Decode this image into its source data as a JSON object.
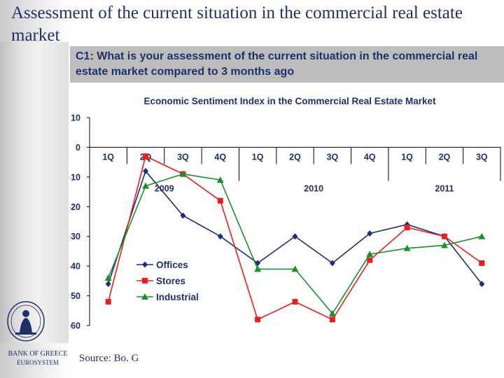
{
  "slide": {
    "title": "Assessment of the current situation in the commercial real estate market",
    "question": "C1: What is your assessment of the current situation in the commercial real estate market compared to 3 months ago",
    "bank_name": "BANK OF GREECE",
    "bank_subtitle": "EUROSYSTEM",
    "source": "Source: Bo. G",
    "colors": {
      "title": "#1f2f6b",
      "band": "#bdbdbd"
    }
  },
  "chart_data": {
    "type": "line",
    "title": "Economic Sentiment Index in the Commercial Real Estate Market",
    "categories": [
      "1Q",
      "2Q",
      "3Q",
      "4Q",
      "1Q",
      "2Q",
      "3Q",
      "4Q",
      "1Q",
      "2Q",
      "3Q"
    ],
    "years": [
      {
        "label": "2009",
        "from": 0,
        "to": 3
      },
      {
        "label": "2010",
        "from": 4,
        "to": 7
      },
      {
        "label": "2011",
        "from": 8,
        "to": 10
      }
    ],
    "ylim": [
      -60,
      10
    ],
    "yticks": [
      10,
      0,
      -10,
      -20,
      -30,
      -40,
      -50,
      -60
    ],
    "legend_position": "bottom-left",
    "series": [
      {
        "name": "Offices",
        "color": "#1c2e7a",
        "marker": "diamond",
        "values": [
          -46,
          -8,
          -23,
          -30,
          -39,
          -30,
          -39,
          -29,
          -26,
          -30,
          -46
        ]
      },
      {
        "name": "Stores",
        "color": "#ee1c1c",
        "marker": "square",
        "values": [
          -52,
          -3,
          -9,
          -18,
          -58,
          -52,
          -58,
          -38,
          -27,
          -30,
          -39
        ]
      },
      {
        "name": "Industrial",
        "color": "#17912a",
        "marker": "triangle",
        "values": [
          -44,
          -13,
          -9,
          -11,
          -41,
          -41,
          -56,
          -36,
          -34,
          -33,
          -30
        ]
      }
    ]
  }
}
